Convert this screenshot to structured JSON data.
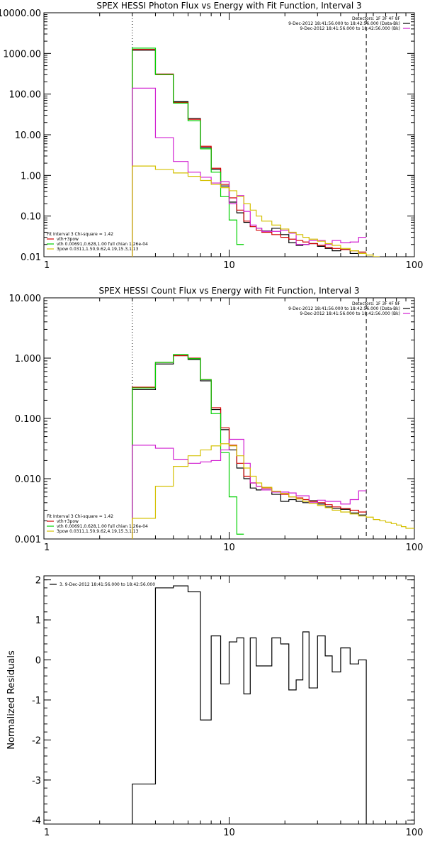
{
  "chart_data": [
    {
      "type": "line",
      "title": "SPEX HESSI Photon Flux vs Energy with Fit Function, Interval 3",
      "xscale": "log",
      "yscale": "log",
      "xlim": [
        1,
        100
      ],
      "ylim": [
        0.01,
        10000
      ],
      "xticks": [
        {
          "v": 1,
          "label": "1"
        },
        {
          "v": 10,
          "label": "10"
        },
        {
          "v": 100,
          "label": "100"
        }
      ],
      "yticks": [
        {
          "v": 0.01,
          "label": "0.01"
        },
        {
          "v": 0.1,
          "label": "0.10"
        },
        {
          "v": 1,
          "label": "1.00"
        },
        {
          "v": 10,
          "label": "10.00"
        },
        {
          "v": 100,
          "label": "100.00"
        },
        {
          "v": 1000,
          "label": "1000.00"
        },
        {
          "v": 10000,
          "label": "10000.00"
        }
      ],
      "vlines": [
        {
          "x": 3.0,
          "style": "dotted"
        },
        {
          "x": 55,
          "style": "dashed"
        }
      ],
      "legend_top_right": [
        {
          "text": "Detectors: 1F 3F 4F 8F",
          "color": null
        },
        {
          "text": "9-Dec-2012 18:41:56.000 to 18:42:56.000 (Data-Bk)",
          "color": "#000000"
        },
        {
          "text": "9-Dec-2012 18:41:56.000 to 18:42:56.000 (Bk)",
          "color": "#d11fd1"
        }
      ],
      "legend_bottom_left": [
        {
          "text": "Fit Interval 3   Chi-square = 1.42",
          "color": null
        },
        {
          "text": "vth+3pow",
          "color": "#d10000"
        },
        {
          "text": "vth 0.00691,0.628,1.00   full chian 1.26e-04",
          "color": "#00d000"
        },
        {
          "text": "3pow 0.0311,1.50,9.62,4.19,15.3,1.13",
          "color": "#d4c000"
        }
      ],
      "series": [
        {
          "color": "#000000",
          "edges": [
            3,
            4,
            5,
            6,
            7,
            8,
            9,
            10,
            11,
            12,
            13,
            14,
            15,
            17,
            19,
            21,
            23,
            25,
            27,
            30,
            33,
            36,
            40,
            45,
            50,
            55
          ],
          "values": [
            1200,
            310,
            65,
            25,
            4.8,
            1.4,
            0.55,
            0.22,
            0.12,
            0.07,
            0.055,
            0.05,
            0.043,
            0.05,
            0.035,
            0.022,
            0.019,
            0.02,
            0.021,
            0.018,
            0.016,
            0.014,
            0.015,
            0.012,
            0.013
          ]
        },
        {
          "color": "#d10000",
          "edges": [
            3,
            4,
            5,
            6,
            7,
            8,
            9,
            10,
            11,
            12,
            13,
            14,
            15,
            17,
            19,
            21,
            23,
            25,
            27,
            30,
            33,
            36,
            40,
            45,
            50,
            55
          ],
          "values": [
            1250,
            310,
            62,
            24,
            5.2,
            1.5,
            0.6,
            0.28,
            0.14,
            0.075,
            0.055,
            0.045,
            0.04,
            0.035,
            0.03,
            0.027,
            0.025,
            0.023,
            0.021,
            0.019,
            0.017,
            0.016,
            0.015,
            0.014,
            0.013
          ]
        },
        {
          "color": "#00d000",
          "edges": [
            3,
            4,
            5,
            6,
            7,
            8,
            9,
            10,
            11,
            12
          ],
          "values": [
            1350,
            300,
            60,
            22,
            4.5,
            1.2,
            0.3,
            0.08,
            0.02
          ]
        },
        {
          "color": "#d11fd1",
          "edges": [
            3,
            4,
            5,
            6,
            7,
            8,
            9,
            10,
            11,
            12,
            13,
            14,
            15,
            17,
            19,
            21,
            23,
            25,
            27,
            30,
            33,
            36,
            40,
            45,
            50,
            55
          ],
          "values": [
            140,
            8.5,
            2.2,
            1.2,
            0.9,
            0.65,
            0.7,
            0.2,
            0.32,
            0.13,
            0.06,
            0.05,
            0.042,
            0.042,
            0.045,
            0.038,
            0.02,
            0.02,
            0.025,
            0.025,
            0.02,
            0.025,
            0.022,
            0.023,
            0.03
          ]
        },
        {
          "color": "#d4c000",
          "edges": [
            3,
            4,
            5,
            6,
            7,
            8,
            9,
            10,
            11,
            12,
            13,
            14,
            15,
            17,
            19,
            21,
            23,
            25,
            27,
            30,
            33,
            36,
            40,
            45,
            50,
            55,
            60,
            65
          ],
          "values": [
            1.7,
            1.4,
            1.15,
            0.95,
            0.75,
            0.6,
            0.5,
            0.42,
            0.3,
            0.2,
            0.14,
            0.1,
            0.075,
            0.06,
            0.048,
            0.04,
            0.035,
            0.03,
            0.027,
            0.024,
            0.021,
            0.019,
            0.016,
            0.014,
            0.012,
            0.011,
            0.01
          ]
        }
      ]
    },
    {
      "type": "line",
      "title": "SPEX HESSI Count Flux vs Energy with Fit Function, Interval 3",
      "xscale": "log",
      "yscale": "log",
      "xlim": [
        1,
        100
      ],
      "ylim": [
        0.001,
        10
      ],
      "xticks": [
        {
          "v": 1,
          "label": "1"
        },
        {
          "v": 10,
          "label": "10"
        },
        {
          "v": 100,
          "label": "100"
        }
      ],
      "yticks": [
        {
          "v": 0.001,
          "label": "0.001"
        },
        {
          "v": 0.01,
          "label": "0.010"
        },
        {
          "v": 0.1,
          "label": "0.100"
        },
        {
          "v": 1,
          "label": "1.000"
        },
        {
          "v": 10,
          "label": "10.000"
        }
      ],
      "vlines": [
        {
          "x": 3.0,
          "style": "dotted"
        },
        {
          "x": 55,
          "style": "dashed"
        }
      ],
      "legend_top_right": [
        {
          "text": "Detectors: 1F 3F 4F 8F",
          "color": null
        },
        {
          "text": "9-Dec-2012 18:41:56.000 to 18:42:56.000 (Data-Bk)",
          "color": "#000000"
        },
        {
          "text": "9-Dec-2012 18:41:56.000 to 18:42:56.000 (Bk)",
          "color": "#d11fd1"
        }
      ],
      "legend_bottom_left": [
        {
          "text": "Fit Interval 3   Chi-square = 1.42",
          "color": null
        },
        {
          "text": "vth+3pow",
          "color": "#d10000"
        },
        {
          "text": "vth 0.00691,0.628,1.00   full chian 1.26e-04",
          "color": "#00d000"
        },
        {
          "text": "3pow 0.0311,1.50,9.62,4.19,15.3,1.13",
          "color": "#d4c000"
        }
      ],
      "series": [
        {
          "color": "#000000",
          "edges": [
            3,
            4,
            5,
            6,
            7,
            8,
            9,
            10,
            11,
            12,
            13,
            14,
            15,
            17,
            19,
            21,
            23,
            25,
            27,
            30,
            33,
            36,
            40,
            45,
            50,
            55
          ],
          "values": [
            0.3,
            0.8,
            1.1,
            0.95,
            0.42,
            0.14,
            0.065,
            0.03,
            0.015,
            0.01,
            0.007,
            0.0065,
            0.0065,
            0.0055,
            0.0042,
            0.0045,
            0.0042,
            0.004,
            0.0043,
            0.0038,
            0.0034,
            0.0032,
            0.0031,
            0.0027,
            0.0025
          ]
        },
        {
          "color": "#d10000",
          "edges": [
            3,
            4,
            5,
            6,
            7,
            8,
            9,
            10,
            11,
            12,
            13,
            14,
            15,
            17,
            19,
            21,
            23,
            25,
            27,
            30,
            33,
            36,
            40,
            45,
            50,
            55
          ],
          "values": [
            0.33,
            0.85,
            1.1,
            1.0,
            0.44,
            0.15,
            0.07,
            0.036,
            0.018,
            0.011,
            0.0085,
            0.0075,
            0.007,
            0.0062,
            0.0055,
            0.005,
            0.0048,
            0.0045,
            0.0042,
            0.004,
            0.0037,
            0.0034,
            0.0032,
            0.003,
            0.0028
          ]
        },
        {
          "color": "#00d000",
          "edges": [
            3,
            4,
            5,
            6,
            7,
            8,
            9,
            10,
            11,
            12
          ],
          "values": [
            0.32,
            0.85,
            1.15,
            0.98,
            0.44,
            0.12,
            0.027,
            0.005,
            0.0012
          ]
        },
        {
          "color": "#d11fd1",
          "edges": [
            3,
            4,
            5,
            6,
            7,
            8,
            9,
            10,
            11,
            12,
            13,
            14,
            15,
            17,
            19,
            21,
            23,
            25,
            27,
            30,
            33,
            36,
            40,
            45,
            50,
            55
          ],
          "values": [
            0.036,
            0.032,
            0.021,
            0.018,
            0.019,
            0.02,
            0.03,
            0.045,
            0.045,
            0.018,
            0.0085,
            0.0075,
            0.0065,
            0.006,
            0.006,
            0.0058,
            0.0052,
            0.0052,
            0.004,
            0.0044,
            0.0042,
            0.0042,
            0.0038,
            0.0045,
            0.0063
          ]
        },
        {
          "color": "#d4c000",
          "edges": [
            3,
            4,
            5,
            6,
            7,
            8,
            9,
            10,
            11,
            12,
            13,
            14,
            15,
            17,
            19,
            21,
            23,
            25,
            27,
            30,
            33,
            36,
            40,
            45,
            50,
            55,
            60,
            65,
            70,
            75,
            80,
            85,
            90,
            100
          ],
          "values": [
            0.0022,
            0.0075,
            0.016,
            0.024,
            0.03,
            0.035,
            0.038,
            0.035,
            0.024,
            0.015,
            0.011,
            0.0085,
            0.0072,
            0.0062,
            0.0057,
            0.005,
            0.0046,
            0.0042,
            0.0039,
            0.0036,
            0.0033,
            0.003,
            0.0028,
            0.0026,
            0.0024,
            0.0023,
            0.0021,
            0.002,
            0.0019,
            0.0018,
            0.0017,
            0.0016,
            0.0015
          ]
        }
      ]
    },
    {
      "type": "line",
      "title": "",
      "ylabel": "Normalized Residuals",
      "xscale": "log",
      "yscale": "linear",
      "xlim": [
        1,
        100
      ],
      "ylim": [
        -4.1,
        2.1
      ],
      "xticks": [
        {
          "v": 1,
          "label": "1"
        },
        {
          "v": 10,
          "label": "10"
        },
        {
          "v": 100,
          "label": "100"
        }
      ],
      "yticks": [
        {
          "v": -4,
          "label": "-4"
        },
        {
          "v": -3,
          "label": "-3"
        },
        {
          "v": -2,
          "label": "-2"
        },
        {
          "v": -1,
          "label": "-1"
        },
        {
          "v": 0,
          "label": "0"
        },
        {
          "v": 1,
          "label": "1"
        },
        {
          "v": 2,
          "label": "2"
        }
      ],
      "legend_top_left": [
        {
          "text": "3.  9-Dec-2012 18:41:56.000 to 18:42:56.000",
          "color": "#000000"
        }
      ],
      "series": [
        {
          "color": "#000000",
          "edges": [
            3,
            4,
            5,
            6,
            7,
            8,
            9,
            10,
            11,
            12,
            13,
            14,
            15,
            17,
            19,
            21,
            23,
            25,
            27,
            30,
            33,
            36,
            40,
            45,
            50,
            55
          ],
          "values": [
            -3.1,
            1.8,
            1.85,
            1.7,
            -1.5,
            0.6,
            -0.6,
            0.45,
            0.55,
            -0.85,
            0.55,
            -0.15,
            -0.15,
            0.55,
            0.4,
            -0.75,
            -0.5,
            0.7,
            -0.7,
            0.6,
            0.1,
            -0.3,
            0.3,
            -0.1,
            0.0
          ],
          "drop_ends_to_bottom": true
        }
      ]
    }
  ]
}
